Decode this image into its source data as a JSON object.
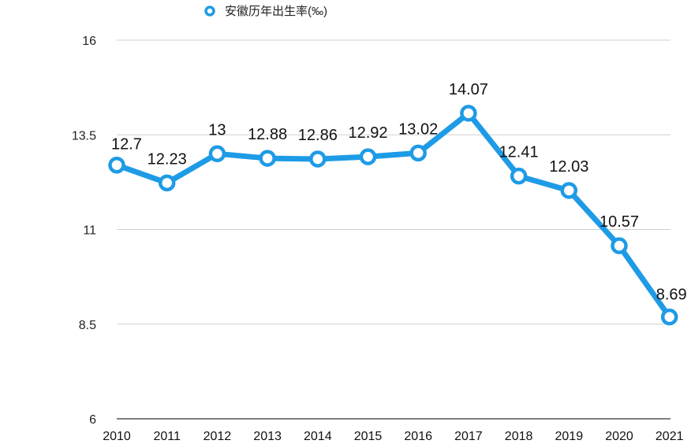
{
  "chart_data": {
    "type": "line",
    "categories": [
      "2010",
      "2011",
      "2012",
      "2013",
      "2014",
      "2015",
      "2016",
      "2017",
      "2018",
      "2019",
      "2020",
      "2021"
    ],
    "series": [
      {
        "name": "安徽历年出生率(‰)",
        "values": [
          12.7,
          12.23,
          13,
          12.88,
          12.86,
          12.92,
          13.02,
          14.07,
          12.41,
          12.03,
          10.57,
          8.69
        ],
        "labels": [
          "12.7",
          "12.23",
          "13",
          "12.88",
          "12.86",
          "12.92",
          "13.02",
          "14.07",
          "12.41",
          "12.03",
          "10.57",
          "8.69"
        ],
        "color": "#1e9be6"
      }
    ],
    "yticks": [
      "6",
      "8.5",
      "11",
      "13.5",
      "16"
    ],
    "ylim": [
      6,
      16
    ],
    "grid": true,
    "legend_position": "top-left",
    "title": "",
    "xlabel": "",
    "ylabel": ""
  }
}
